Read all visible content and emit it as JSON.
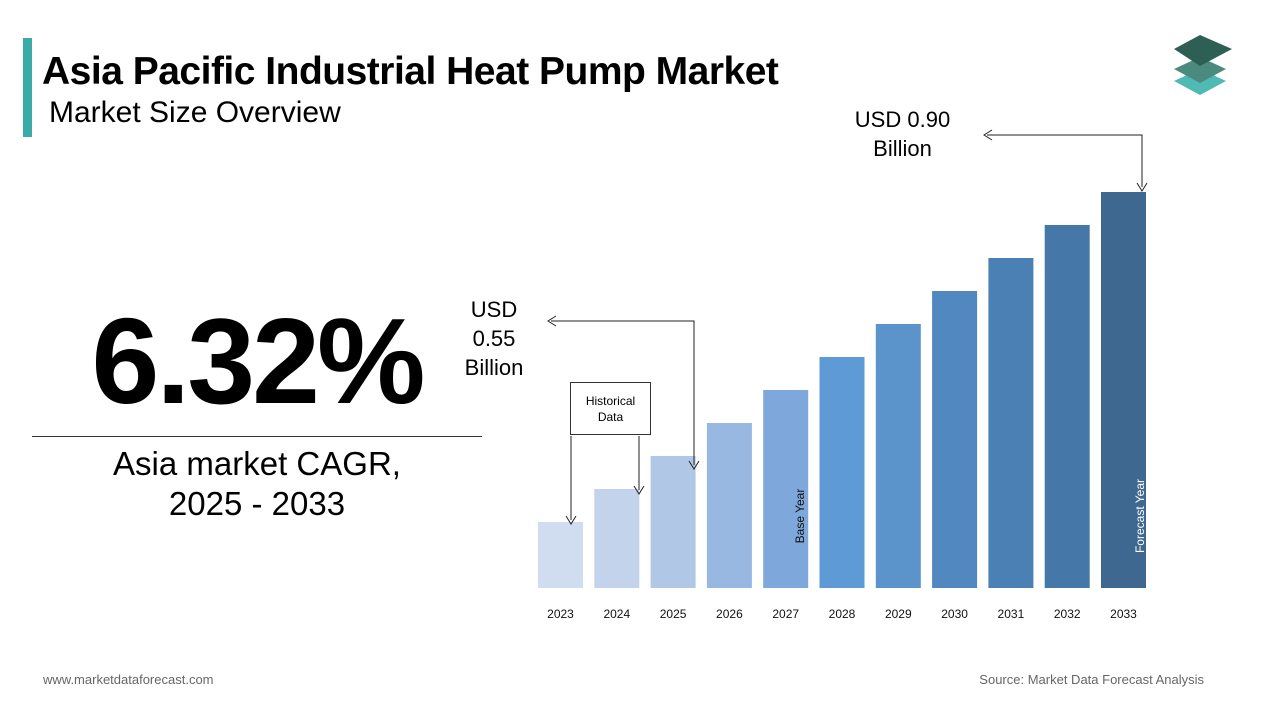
{
  "header": {
    "title": "Asia Pacific Industrial Heat Pump Market",
    "subtitle": "Market Size Overview"
  },
  "kpi": {
    "cagr_value": "6.32%",
    "caption_line1": "Asia market CAGR,",
    "caption_line2": "2025 - 2033"
  },
  "callouts": {
    "end_value": "USD 0.90 Billion",
    "start_value": "USD 0.55 Billion",
    "historical_label": "Historical Data",
    "base_year_label": "Base Year",
    "forecast_year_label": "Forecast Year"
  },
  "footer": {
    "website": "www.marketdataforecast.com",
    "source": "Source: Market Data Forecast Analysis"
  },
  "colors": {
    "accent": "#3aaba6",
    "logo_top": "#2e5f55",
    "logo_mid": "#4b8a7f",
    "logo_bottom": "#4fb9b3",
    "annotation_line": "#222222"
  },
  "chart_data": {
    "type": "bar",
    "categories": [
      "2023",
      "2024",
      "2025",
      "2026",
      "2027",
      "2028",
      "2029",
      "2030",
      "2031",
      "2032",
      "2033"
    ],
    "values": [
      0.2,
      0.3,
      0.4,
      0.5,
      0.6,
      0.7,
      0.8,
      0.9,
      1.0,
      1.1,
      1.2
    ],
    "bar_colors": [
      "#d0dcef",
      "#c2d3eb",
      "#b0c7e6",
      "#98b8e1",
      "#7ea8dc",
      "#5d9ad6",
      "#5a94cb",
      "#5088bf",
      "#4a80b4",
      "#4577a8",
      "#3e6890"
    ],
    "ylim": [
      0,
      1.2
    ],
    "title": "",
    "xlabel": "",
    "ylabel": "",
    "grid": false,
    "legend": "none"
  }
}
